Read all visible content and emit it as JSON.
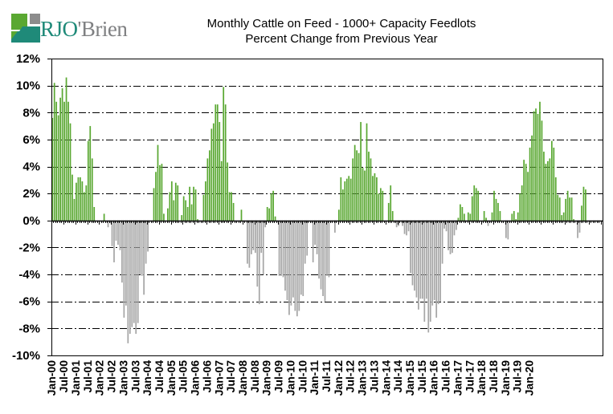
{
  "logo": {
    "name_main": "RJO",
    "name_rest": "'Brien",
    "colors": {
      "green": "#5aa832",
      "teal": "#1f8a79",
      "gray": "#8c8c8c"
    }
  },
  "chart_data": {
    "type": "bar",
    "title": "Monthly Cattle on Feed - 1000+ Capacity Feedlots",
    "subtitle": "Percent Change from Previous Year",
    "xlabel": "",
    "ylabel": "",
    "ylim": [
      -10,
      12
    ],
    "yticks": [
      -10,
      -8,
      -6,
      -4,
      -2,
      0,
      2,
      4,
      6,
      8,
      10,
      12
    ],
    "ytick_labels": [
      "-10%",
      "-8%",
      "-6%",
      "-4%",
      "-2%",
      "0%",
      "2%",
      "4%",
      "6%",
      "8%",
      "10%",
      "12%"
    ],
    "grid": "horizontal dash-dot",
    "legend": "none",
    "positive_color": "#5aa832",
    "negative_color": "#a6a6a6",
    "start_month": "Jan-00",
    "frequency": "monthly",
    "xtick_labels": [
      "Jan-00",
      "Jul-00",
      "Jan-01",
      "Jul-01",
      "Jan-02",
      "Jul-02",
      "Jan-03",
      "Jul-03",
      "Jan-04",
      "Jul-04",
      "Jan-05",
      "Jul-05",
      "Jan-06",
      "Jul-06",
      "Jan-07",
      "Jul-07",
      "Jan-08",
      "Jul-08",
      "Jan-09",
      "Jul-09",
      "Jan-10",
      "Jul-10",
      "Jan-11",
      "Jul-11",
      "Jan-12",
      "Jul-12",
      "Jan-13",
      "Jul-13",
      "Jan-14",
      "Jul-14",
      "Jan-15",
      "Jul-15",
      "Jan-16",
      "Jul-16",
      "Jan-17",
      "Jul-17",
      "Jan-18",
      "Jul-18",
      "Jan-19",
      "Jul-19",
      "Jan-20"
    ],
    "values": [
      7.6,
      10.2,
      8.8,
      7.8,
      9.1,
      9.8,
      8.8,
      10.6,
      8.8,
      7.2,
      3.4,
      1.6,
      2.8,
      3.2,
      3.2,
      2.9,
      2.1,
      2.6,
      5.9,
      7.0,
      4.6,
      1.0,
      0.0,
      0.0,
      0.0,
      0.0,
      0.5,
      0.0,
      -0.5,
      -0.2,
      -1.9,
      -3.1,
      -1.5,
      -1.8,
      -2.2,
      -4.6,
      -7.2,
      -6.3,
      -9.1,
      -8.4,
      -7.9,
      -7.6,
      -8.4,
      -7.6,
      -4.0,
      -4.1,
      -5.5,
      -3.2,
      -2.3,
      0.0,
      0.0,
      2.4,
      3.6,
      5.6,
      4.1,
      4.2,
      0.5,
      0.0,
      0.9,
      2.1,
      2.9,
      1.5,
      2.8,
      2.6,
      0.0,
      0.4,
      1.8,
      1.5,
      1.0,
      2.5,
      1.2,
      2.5,
      2.3,
      0.1,
      0.0,
      0.0,
      1.9,
      2.9,
      4.6,
      5.2,
      6.8,
      7.2,
      8.6,
      8.6,
      7.3,
      4.4,
      9.9,
      8.6,
      4.3,
      2.1,
      2.1,
      1.3,
      0.0,
      0.0,
      0.0,
      0.8,
      0.0,
      0.0,
      -3.2,
      -3.5,
      -2.5,
      -2.2,
      -2.4,
      -4.9,
      -6.2,
      -2.4,
      -4.0,
      -0.5,
      1.0,
      0.9,
      2.0,
      2.2,
      0.3,
      -0.1,
      -4.1,
      -4.1,
      -4.2,
      -5.2,
      -5.9,
      -7.0,
      -6.3,
      -5.7,
      -6.7,
      -7.1,
      -6.7,
      -5.5,
      -5.6,
      -3.2,
      -2.6,
      0.0,
      0.0,
      -3.1,
      -1.8,
      -2.5,
      -4.3,
      -5.1,
      -5.6,
      -6.0,
      -4.1,
      -4.2,
      0.0,
      0.0,
      -0.9,
      0.0,
      0.8,
      3.2,
      2.3,
      2.9,
      3.1,
      3.3,
      3.1,
      4.6,
      5.6,
      5.2,
      5.0,
      7.3,
      3.9,
      3.7,
      7.2,
      5.1,
      4.6,
      3.3,
      3.5,
      3.2,
      2.0,
      2.4,
      2.2,
      0.0,
      0.0,
      1.3,
      2.6,
      0.7,
      0.0,
      -0.5,
      -0.4,
      0.0,
      -0.4,
      -1.0,
      -1.1,
      -0.8,
      -3.9,
      -4.8,
      -5.2,
      -5.7,
      -6.6,
      -5.8,
      -5.8,
      -7.5,
      -5.8,
      -8.3,
      -7.5,
      -6.3,
      -5.9,
      -7.2,
      -6.2,
      -6.0,
      -3.2,
      -0.6,
      -0.8,
      -2.2,
      -2.5,
      -2.4,
      -1.1,
      -0.7,
      0.2,
      1.2,
      1.0,
      0.5,
      -0.1,
      0.6,
      0.5,
      1.8,
      2.6,
      2.4,
      2.2,
      0.0,
      0.0,
      0.7,
      0.2,
      -0.4,
      0.0,
      0.6,
      2.2,
      1.6,
      1.3,
      0.7,
      0.0,
      0.0,
      -1.3,
      -1.4,
      0.0,
      0.5,
      0.7,
      0.1,
      0.6,
      2.0,
      2.6,
      4.5,
      4.2,
      3.6,
      5.4,
      6.3,
      8.1,
      8.3,
      7.9,
      8.8,
      7.4,
      5.1,
      4.2,
      4.4,
      4.6,
      5.9,
      5.4,
      3.2,
      1.9,
      1.7,
      0.4,
      0.6,
      1.6,
      2.2,
      1.7,
      1.7,
      0.1,
      0.0,
      -1.3,
      -0.9,
      1.1,
      2.5,
      2.3,
      0.0,
      0.0,
      0.0,
      0.0,
      0.0,
      0.0,
      0.0,
      0.0
    ]
  }
}
